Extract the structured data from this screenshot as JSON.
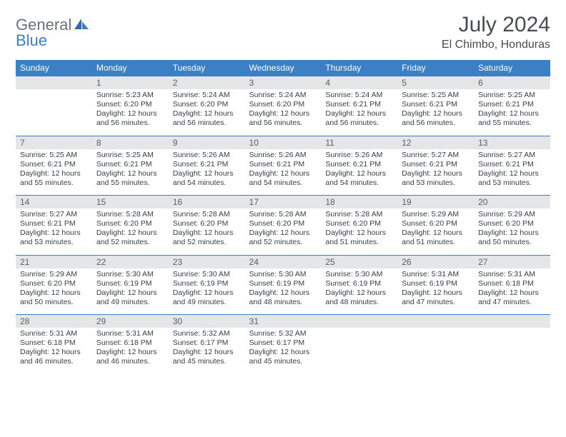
{
  "brand": {
    "word1": "General",
    "word2": "Blue"
  },
  "title": "July 2024",
  "location": "El Chimbo, Honduras",
  "colors": {
    "header_bg": "#3b7fc4",
    "header_text": "#ffffff",
    "daynum_bg": "#e4e6e8",
    "rule": "#3b7fc4",
    "body_text": "#3a3e44",
    "title_text": "#474c52",
    "logo_gray": "#6a7178",
    "logo_blue": "#3b7fc4"
  },
  "typography": {
    "title_fontsize": 30,
    "subtitle_fontsize": 16,
    "th_fontsize": 12,
    "daynum_fontsize": 12,
    "cell_fontsize": 10.5
  },
  "weekdays": [
    "Sunday",
    "Monday",
    "Tuesday",
    "Wednesday",
    "Thursday",
    "Friday",
    "Saturday"
  ],
  "weeks": [
    [
      null,
      {
        "n": "1",
        "sunrise": "5:23 AM",
        "sunset": "6:20 PM",
        "daylight": "12 hours and 56 minutes."
      },
      {
        "n": "2",
        "sunrise": "5:24 AM",
        "sunset": "6:20 PM",
        "daylight": "12 hours and 56 minutes."
      },
      {
        "n": "3",
        "sunrise": "5:24 AM",
        "sunset": "6:20 PM",
        "daylight": "12 hours and 56 minutes."
      },
      {
        "n": "4",
        "sunrise": "5:24 AM",
        "sunset": "6:21 PM",
        "daylight": "12 hours and 56 minutes."
      },
      {
        "n": "5",
        "sunrise": "5:25 AM",
        "sunset": "6:21 PM",
        "daylight": "12 hours and 56 minutes."
      },
      {
        "n": "6",
        "sunrise": "5:25 AM",
        "sunset": "6:21 PM",
        "daylight": "12 hours and 55 minutes."
      }
    ],
    [
      {
        "n": "7",
        "sunrise": "5:25 AM",
        "sunset": "6:21 PM",
        "daylight": "12 hours and 55 minutes."
      },
      {
        "n": "8",
        "sunrise": "5:25 AM",
        "sunset": "6:21 PM",
        "daylight": "12 hours and 55 minutes."
      },
      {
        "n": "9",
        "sunrise": "5:26 AM",
        "sunset": "6:21 PM",
        "daylight": "12 hours and 54 minutes."
      },
      {
        "n": "10",
        "sunrise": "5:26 AM",
        "sunset": "6:21 PM",
        "daylight": "12 hours and 54 minutes."
      },
      {
        "n": "11",
        "sunrise": "5:26 AM",
        "sunset": "6:21 PM",
        "daylight": "12 hours and 54 minutes."
      },
      {
        "n": "12",
        "sunrise": "5:27 AM",
        "sunset": "6:21 PM",
        "daylight": "12 hours and 53 minutes."
      },
      {
        "n": "13",
        "sunrise": "5:27 AM",
        "sunset": "6:21 PM",
        "daylight": "12 hours and 53 minutes."
      }
    ],
    [
      {
        "n": "14",
        "sunrise": "5:27 AM",
        "sunset": "6:21 PM",
        "daylight": "12 hours and 53 minutes."
      },
      {
        "n": "15",
        "sunrise": "5:28 AM",
        "sunset": "6:20 PM",
        "daylight": "12 hours and 52 minutes."
      },
      {
        "n": "16",
        "sunrise": "5:28 AM",
        "sunset": "6:20 PM",
        "daylight": "12 hours and 52 minutes."
      },
      {
        "n": "17",
        "sunrise": "5:28 AM",
        "sunset": "6:20 PM",
        "daylight": "12 hours and 52 minutes."
      },
      {
        "n": "18",
        "sunrise": "5:28 AM",
        "sunset": "6:20 PM",
        "daylight": "12 hours and 51 minutes."
      },
      {
        "n": "19",
        "sunrise": "5:29 AM",
        "sunset": "6:20 PM",
        "daylight": "12 hours and 51 minutes."
      },
      {
        "n": "20",
        "sunrise": "5:29 AM",
        "sunset": "6:20 PM",
        "daylight": "12 hours and 50 minutes."
      }
    ],
    [
      {
        "n": "21",
        "sunrise": "5:29 AM",
        "sunset": "6:20 PM",
        "daylight": "12 hours and 50 minutes."
      },
      {
        "n": "22",
        "sunrise": "5:30 AM",
        "sunset": "6:19 PM",
        "daylight": "12 hours and 49 minutes."
      },
      {
        "n": "23",
        "sunrise": "5:30 AM",
        "sunset": "6:19 PM",
        "daylight": "12 hours and 49 minutes."
      },
      {
        "n": "24",
        "sunrise": "5:30 AM",
        "sunset": "6:19 PM",
        "daylight": "12 hours and 48 minutes."
      },
      {
        "n": "25",
        "sunrise": "5:30 AM",
        "sunset": "6:19 PM",
        "daylight": "12 hours and 48 minutes."
      },
      {
        "n": "26",
        "sunrise": "5:31 AM",
        "sunset": "6:19 PM",
        "daylight": "12 hours and 47 minutes."
      },
      {
        "n": "27",
        "sunrise": "5:31 AM",
        "sunset": "6:18 PM",
        "daylight": "12 hours and 47 minutes."
      }
    ],
    [
      {
        "n": "28",
        "sunrise": "5:31 AM",
        "sunset": "6:18 PM",
        "daylight": "12 hours and 46 minutes."
      },
      {
        "n": "29",
        "sunrise": "5:31 AM",
        "sunset": "6:18 PM",
        "daylight": "12 hours and 46 minutes."
      },
      {
        "n": "30",
        "sunrise": "5:32 AM",
        "sunset": "6:17 PM",
        "daylight": "12 hours and 45 minutes."
      },
      {
        "n": "31",
        "sunrise": "5:32 AM",
        "sunset": "6:17 PM",
        "daylight": "12 hours and 45 minutes."
      },
      null,
      null,
      null
    ]
  ],
  "labels": {
    "sunrise": "Sunrise:",
    "sunset": "Sunset:",
    "daylight": "Daylight:"
  }
}
